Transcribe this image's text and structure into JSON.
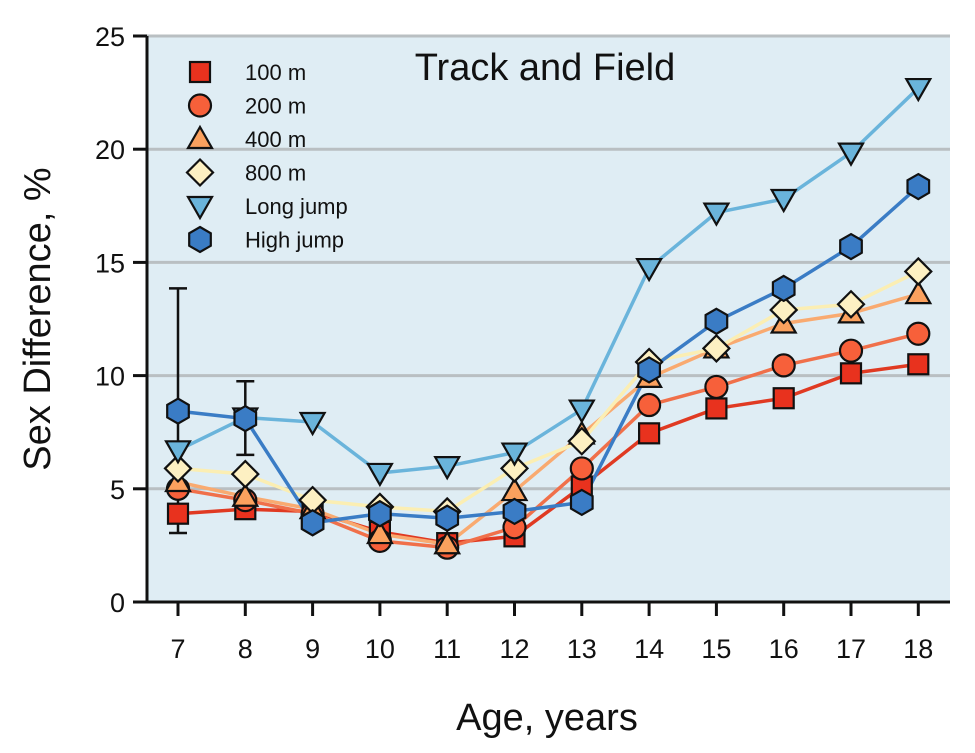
{
  "chart_data": {
    "type": "line",
    "title": "Track and Field",
    "xlabel": "Age, years",
    "ylabel": "Sex Difference, %",
    "x": [
      7,
      8,
      9,
      10,
      11,
      12,
      13,
      14,
      15,
      16,
      17,
      18
    ],
    "x_tick_labels": [
      "7",
      "8",
      "9",
      "10",
      "11",
      "12",
      "13",
      "14",
      "15",
      "16",
      "17",
      "18"
    ],
    "xlim": [
      6.55,
      18.5
    ],
    "ylim": [
      0,
      25
    ],
    "y_ticks": [
      0,
      5,
      10,
      15,
      20,
      25
    ],
    "y_tick_labels": [
      "0",
      "5",
      "10",
      "15",
      "20",
      "25"
    ],
    "grid": "horizontal",
    "background_color": "#dfedf4",
    "legend_position": "top-left",
    "series": [
      {
        "name": "100 m",
        "marker": "square",
        "color": "#e8321e",
        "line_color": "#e03a22",
        "values": [
          3.9,
          4.1,
          4.0,
          3.1,
          2.6,
          2.9,
          5.1,
          7.45,
          8.55,
          9.0,
          10.1,
          10.5
        ]
      },
      {
        "name": "200 m",
        "marker": "circle",
        "color": "#f7603a",
        "line_color": "#f0704a",
        "values": [
          5.0,
          4.5,
          3.9,
          2.7,
          2.4,
          3.3,
          5.9,
          8.7,
          9.5,
          10.45,
          11.1,
          11.85
        ]
      },
      {
        "name": "400 m",
        "marker": "triangle-up",
        "color": "#fba15e",
        "line_color": "#f9aa70",
        "values": [
          5.3,
          4.65,
          4.1,
          3.0,
          2.55,
          4.9,
          7.4,
          9.9,
          11.2,
          12.3,
          12.75,
          13.6
        ]
      },
      {
        "name": "800 m",
        "marker": "diamond",
        "color": "#fdf0c2",
        "line_color": "#fbeeb3",
        "values": [
          5.9,
          5.65,
          4.5,
          4.2,
          4.0,
          5.9,
          7.1,
          10.6,
          11.2,
          12.9,
          13.15,
          14.6
        ]
      },
      {
        "name": "Long jump",
        "marker": "triangle-down",
        "color": "#6ab4db",
        "line_color": "#6ab4db",
        "values": [
          6.7,
          8.15,
          7.95,
          5.7,
          6.0,
          6.6,
          8.5,
          14.75,
          17.2,
          17.8,
          19.85,
          22.7
        ]
      },
      {
        "name": "High jump",
        "marker": "hexagon",
        "color": "#3a7cc5",
        "line_color": "#3a7cc5",
        "values": [
          8.43,
          8.1,
          3.5,
          3.9,
          3.7,
          4.0,
          4.4,
          10.25,
          12.4,
          13.85,
          15.7,
          18.35
        ]
      }
    ],
    "error_bars": [
      {
        "x": 7,
        "low": 3.05,
        "high": 13.85
      },
      {
        "x": 8,
        "low": 6.5,
        "high": 9.75
      }
    ]
  }
}
